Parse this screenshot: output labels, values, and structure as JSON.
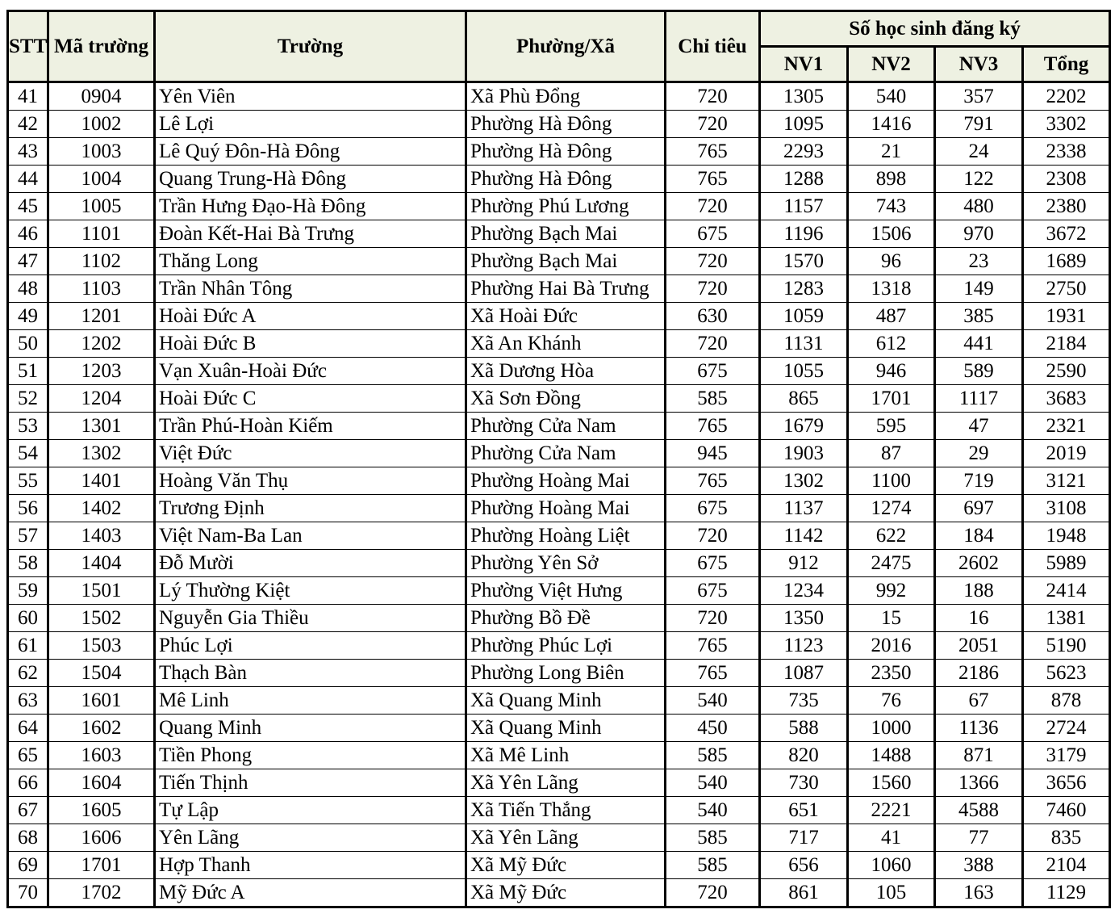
{
  "header": {
    "stt": "STT",
    "ma_truong": "Mã trường",
    "truong": "Trường",
    "phuong_xa": "Phường/Xã",
    "chi_tieu": "Chỉ tiêu",
    "so_hoc_sinh": "Số học sinh đăng ký",
    "nv1": "NV1",
    "nv2": "NV2",
    "nv3": "NV3",
    "tong": "Tổng"
  },
  "rows": [
    [
      "41",
      "0904",
      "Yên Viên",
      "Xã Phù Đổng",
      "720",
      "1305",
      "540",
      "357",
      "2202"
    ],
    [
      "42",
      "1002",
      "Lê Lợi",
      "Phường Hà Đông",
      "720",
      "1095",
      "1416",
      "791",
      "3302"
    ],
    [
      "43",
      "1003",
      "Lê Quý Đôn-Hà Đông",
      "Phường Hà Đông",
      "765",
      "2293",
      "21",
      "24",
      "2338"
    ],
    [
      "44",
      "1004",
      "Quang Trung-Hà Đông",
      "Phường Hà Đông",
      "765",
      "1288",
      "898",
      "122",
      "2308"
    ],
    [
      "45",
      "1005",
      "Trần Hưng Đạo-Hà Đông",
      "Phường Phú Lương",
      "720",
      "1157",
      "743",
      "480",
      "2380"
    ],
    [
      "46",
      "1101",
      "Đoàn Kết-Hai Bà Trưng",
      "Phường Bạch Mai",
      "675",
      "1196",
      "1506",
      "970",
      "3672"
    ],
    [
      "47",
      "1102",
      "Thăng Long",
      "Phường Bạch Mai",
      "720",
      "1570",
      "96",
      "23",
      "1689"
    ],
    [
      "48",
      "1103",
      "Trần Nhân Tông",
      "Phường Hai Bà Trưng",
      "720",
      "1283",
      "1318",
      "149",
      "2750"
    ],
    [
      "49",
      "1201",
      "Hoài Đức A",
      "Xã Hoài Đức",
      "630",
      "1059",
      "487",
      "385",
      "1931"
    ],
    [
      "50",
      "1202",
      "Hoài Đức B",
      "Xã An Khánh",
      "720",
      "1131",
      "612",
      "441",
      "2184"
    ],
    [
      "51",
      "1203",
      "Vạn Xuân-Hoài Đức",
      "Xã Dương Hòa",
      "675",
      "1055",
      "946",
      "589",
      "2590"
    ],
    [
      "52",
      "1204",
      "Hoài Đức C",
      "Xã Sơn Đồng",
      "585",
      "865",
      "1701",
      "1117",
      "3683"
    ],
    [
      "53",
      "1301",
      "Trần Phú-Hoàn Kiếm",
      "Phường Cửa Nam",
      "765",
      "1679",
      "595",
      "47",
      "2321"
    ],
    [
      "54",
      "1302",
      "Việt Đức",
      "Phường Cửa Nam",
      "945",
      "1903",
      "87",
      "29",
      "2019"
    ],
    [
      "55",
      "1401",
      "Hoàng Văn Thụ",
      "Phường Hoàng Mai",
      "765",
      "1302",
      "1100",
      "719",
      "3121"
    ],
    [
      "56",
      "1402",
      "Trương Định",
      "Phường Hoàng Mai",
      "675",
      "1137",
      "1274",
      "697",
      "3108"
    ],
    [
      "57",
      "1403",
      "Việt Nam-Ba Lan",
      "Phường Hoàng Liệt",
      "720",
      "1142",
      "622",
      "184",
      "1948"
    ],
    [
      "58",
      "1404",
      "Đỗ Mười",
      "Phường Yên Sở",
      "675",
      "912",
      "2475",
      "2602",
      "5989"
    ],
    [
      "59",
      "1501",
      "Lý Thường Kiệt",
      "Phường Việt Hưng",
      "675",
      "1234",
      "992",
      "188",
      "2414"
    ],
    [
      "60",
      "1502",
      "Nguyễn Gia Thiều",
      "Phường Bồ Đề",
      "720",
      "1350",
      "15",
      "16",
      "1381"
    ],
    [
      "61",
      "1503",
      "Phúc Lợi",
      "Phường Phúc Lợi",
      "765",
      "1123",
      "2016",
      "2051",
      "5190"
    ],
    [
      "62",
      "1504",
      "Thạch Bàn",
      "Phường Long Biên",
      "765",
      "1087",
      "2350",
      "2186",
      "5623"
    ],
    [
      "63",
      "1601",
      "Mê Linh",
      "Xã Quang Minh",
      "540",
      "735",
      "76",
      "67",
      "878"
    ],
    [
      "64",
      "1602",
      "Quang Minh",
      "Xã Quang Minh",
      "450",
      "588",
      "1000",
      "1136",
      "2724"
    ],
    [
      "65",
      "1603",
      "Tiền Phong",
      "Xã Mê Linh",
      "585",
      "820",
      "1488",
      "871",
      "3179"
    ],
    [
      "66",
      "1604",
      "Tiến Thịnh",
      "Xã Yên Lãng",
      "540",
      "730",
      "1560",
      "1366",
      "3656"
    ],
    [
      "67",
      "1605",
      "Tự Lập",
      "Xã Tiến Thắng",
      "540",
      "651",
      "2221",
      "4588",
      "7460"
    ],
    [
      "68",
      "1606",
      "Yên Lãng",
      "Xã Yên Lãng",
      "585",
      "717",
      "41",
      "77",
      "835"
    ],
    [
      "69",
      "1701",
      "Hợp Thanh",
      "Xã Mỹ Đức",
      "585",
      "656",
      "1060",
      "388",
      "2104"
    ],
    [
      "70",
      "1702",
      "Mỹ Đức A",
      "Xã Mỹ Đức",
      "720",
      "861",
      "105",
      "163",
      "1129"
    ]
  ]
}
